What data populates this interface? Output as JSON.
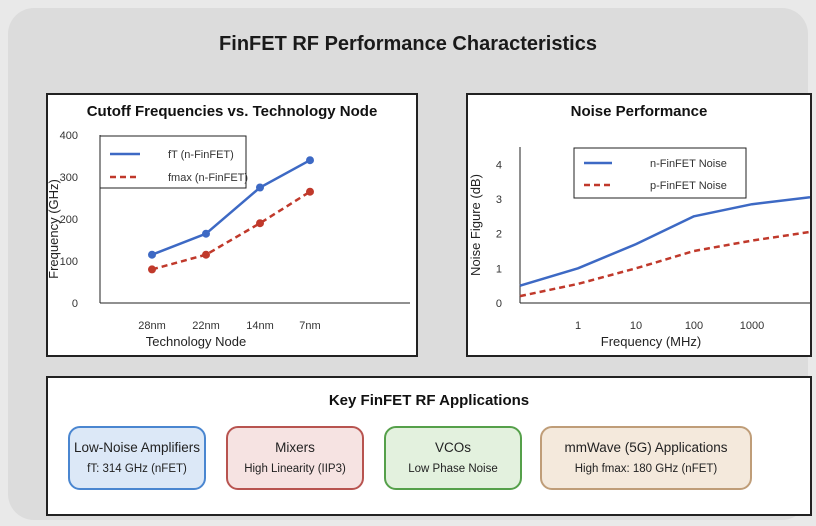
{
  "title": "FinFET RF Performance Characteristics",
  "cutoff_chart": {
    "title": "Cutoff Frequencies vs. Technology Node",
    "xlabel": "Technology Node",
    "ylabel": "Frequency (GHz)",
    "y_ticks": [
      "400",
      "300",
      "200",
      "100",
      "0"
    ],
    "x_ticks": [
      "28nm",
      "22nm",
      "14nm",
      "7nm"
    ],
    "legend": [
      "fT (n-FinFET)",
      "fmax (n-FinFET)"
    ]
  },
  "noise_chart": {
    "title": "Noise Performance",
    "xlabel": "Frequency (MHz)",
    "ylabel": "Noise Figure (dB)",
    "y_ticks": [
      "4",
      "3",
      "2",
      "1",
      "0"
    ],
    "x_ticks": [
      "1",
      "10",
      "100",
      "1000"
    ],
    "legend": [
      "n-FinFET Noise",
      "p-FinFET Noise"
    ]
  },
  "applications": {
    "title": "Key FinFET RF Applications",
    "items": [
      {
        "title": "Low-Noise Amplifiers",
        "sub": "fT: 314 GHz (nFET)"
      },
      {
        "title": "Mixers",
        "sub": "High Linearity (IIP3)"
      },
      {
        "title": "VCOs",
        "sub": "Low Phase Noise"
      },
      {
        "title": "mmWave (5G) Applications",
        "sub": "High fmax: 180 GHz (nFET)"
      }
    ]
  },
  "chart_data": [
    {
      "type": "line",
      "title": "Cutoff Frequencies vs. Technology Node",
      "xlabel": "Technology Node",
      "ylabel": "Frequency (GHz)",
      "categories": [
        "28nm",
        "22nm",
        "14nm",
        "7nm"
      ],
      "ylim": [
        0,
        400
      ],
      "series": [
        {
          "name": "fT (n-FinFET)",
          "values": [
            115,
            165,
            275,
            340
          ],
          "color": "#3d69c4",
          "style": "solid"
        },
        {
          "name": "fmax (n-FinFET)",
          "values": [
            80,
            115,
            190,
            265
          ],
          "color": "#c0392b",
          "style": "dashed"
        }
      ],
      "legend_position": "top-left",
      "grid": false
    },
    {
      "type": "line",
      "title": "Noise Performance",
      "xlabel": "Frequency (MHz)",
      "ylabel": "Noise Figure (dB)",
      "x_scale": "log",
      "xlim": [
        0.1,
        10000
      ],
      "ylim": [
        0,
        4.5
      ],
      "series": [
        {
          "name": "n-FinFET Noise",
          "x": [
            0.1,
            1,
            10,
            100,
            1000,
            10000
          ],
          "values": [
            0.5,
            1.0,
            1.7,
            2.5,
            2.85,
            3.05
          ],
          "color": "#3d69c4",
          "style": "solid"
        },
        {
          "name": "p-FinFET Noise",
          "x": [
            0.1,
            1,
            10,
            100,
            1000,
            10000
          ],
          "values": [
            0.2,
            0.55,
            1.0,
            1.5,
            1.8,
            2.05
          ],
          "color": "#c0392b",
          "style": "dashed"
        }
      ],
      "legend_position": "top-right",
      "grid": false
    }
  ],
  "colors": {
    "blue_line": "#3d69c4",
    "red_line": "#c0392b",
    "lna_border": "#4a86d0",
    "lna_fill": "#dce8f7",
    "mixer_border": "#b85450",
    "mixer_fill": "#f6e3e2",
    "vco_border": "#55a04a",
    "vco_fill": "#e3f1de",
    "mmwave_border": "#bf9d78",
    "mmwave_fill": "#f4e9dc"
  }
}
